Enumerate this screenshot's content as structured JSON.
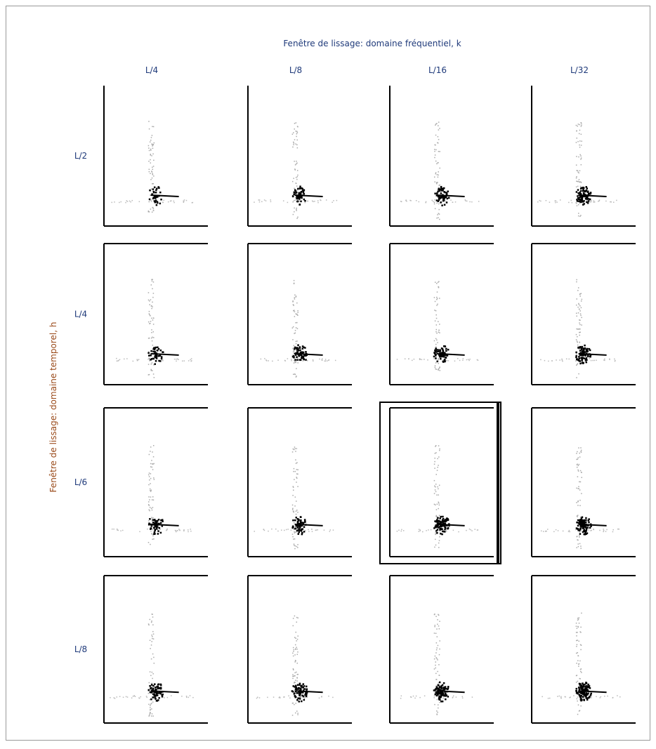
{
  "figure": {
    "title": "Fenêtre de lissage: domaine fréquentiel, k",
    "y_axis_label": "Fenêtre de lissage: domaine temporel, h",
    "columns": [
      "L/4",
      "L/8",
      "L/16",
      "L/32"
    ],
    "rows": [
      "L/2",
      "L/4",
      "L/6",
      "L/8"
    ]
  }
}
